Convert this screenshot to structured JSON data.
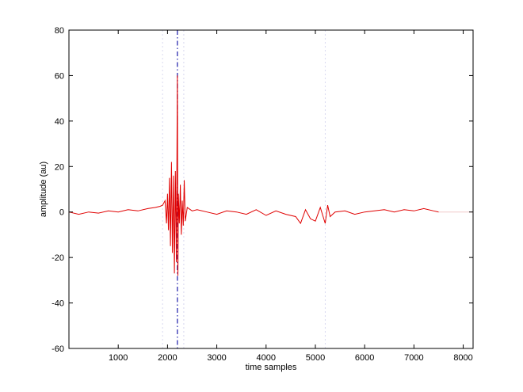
{
  "chart_data": {
    "type": "line",
    "title": "",
    "xlabel": "time samples",
    "ylabel": "amplitude (au)",
    "xlim": [
      0,
      8200
    ],
    "ylim": [
      -60,
      80
    ],
    "xticks": [
      1000,
      2000,
      3000,
      4000,
      5000,
      6000,
      7000,
      8000
    ],
    "yticks": [
      -60,
      -40,
      -20,
      0,
      20,
      40,
      60,
      80
    ],
    "grid": false,
    "legend": "none",
    "series": [
      {
        "color": "#e00000",
        "x": [
          0,
          200,
          400,
          600,
          800,
          1000,
          1200,
          1400,
          1600,
          1750,
          1850,
          1900,
          1950,
          1980,
          2000,
          2020,
          2040,
          2060,
          2080,
          2100,
          2120,
          2140,
          2160,
          2180,
          2200,
          2210,
          2220,
          2240,
          2260,
          2280,
          2300,
          2320,
          2340,
          2360,
          2400,
          2500,
          2600,
          2800,
          3000,
          3200,
          3400,
          3600,
          3800,
          4000,
          4200,
          4400,
          4600,
          4700,
          4800,
          4900,
          5000,
          5100,
          5200,
          5250,
          5300,
          5400,
          5600,
          5800,
          6000,
          6200,
          6400,
          6600,
          6800,
          7000,
          7200,
          7400,
          7500
        ],
        "y": [
          0,
          -1,
          0,
          -0.5,
          0.5,
          0,
          1,
          0.5,
          1.5,
          2,
          2.5,
          3,
          5,
          -5,
          8,
          -8,
          15,
          -15,
          22,
          -18,
          16,
          -27,
          18,
          -22,
          60,
          -28,
          8,
          -5,
          12,
          -10,
          5,
          -6,
          14,
          -4,
          2,
          0.5,
          1,
          0,
          -1,
          0.5,
          0,
          -1,
          1,
          -1.5,
          0.5,
          -1,
          -2,
          -5,
          1,
          -3,
          -4,
          2,
          -5,
          3,
          -2,
          0,
          0.5,
          -1,
          0,
          0.5,
          1,
          0,
          1,
          0.5,
          1.5,
          0.5,
          0
        ]
      }
    ],
    "markers": [
      {
        "x": 2200,
        "style": "dash-dot",
        "color": "#1a1aaa"
      }
    ],
    "faint_lines": [
      1900,
      2330,
      5200
    ]
  }
}
